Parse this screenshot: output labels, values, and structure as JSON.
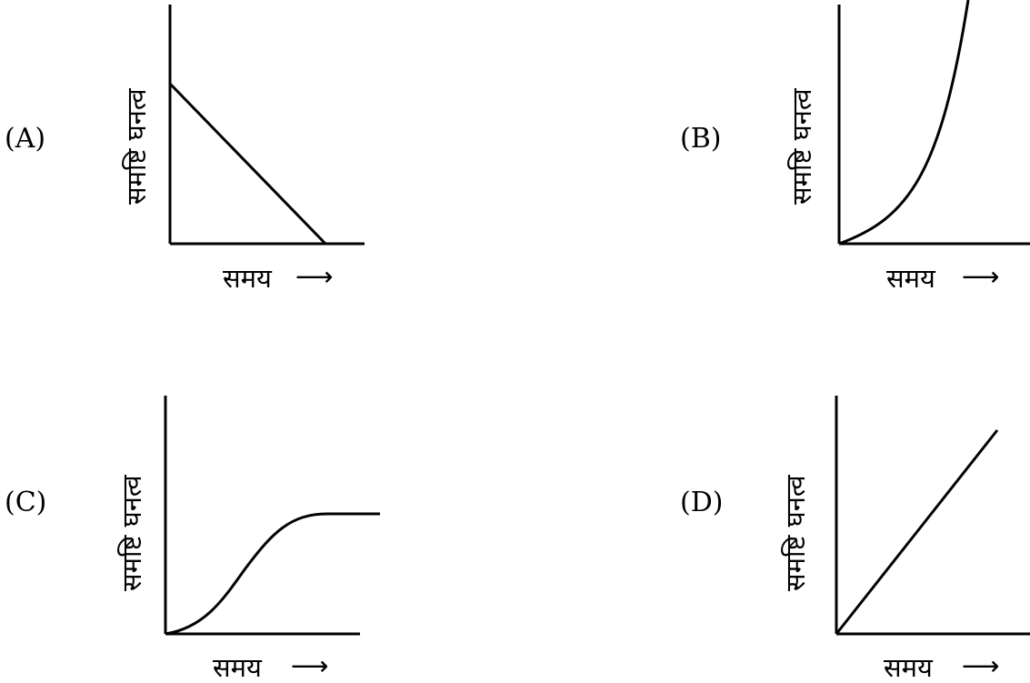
{
  "panels": [
    {
      "option": "(A)",
      "ylabel": "समष्टि घनत्व",
      "xlabel": "समय",
      "arrow": "⟶",
      "curve": "linear-decrease"
    },
    {
      "option": "(B)",
      "ylabel": "समष्टि घनत्व",
      "xlabel": "समय",
      "arrow": "⟶",
      "curve": "exponential-increase"
    },
    {
      "option": "(C)",
      "ylabel": "समष्टि घनत्व",
      "xlabel": "समय",
      "arrow": "⟶",
      "curve": "sigmoid"
    },
    {
      "option": "(D)",
      "ylabel": "समष्टि घनत्व",
      "xlabel": "समय",
      "arrow": "⟶",
      "curve": "linear-increase"
    }
  ]
}
